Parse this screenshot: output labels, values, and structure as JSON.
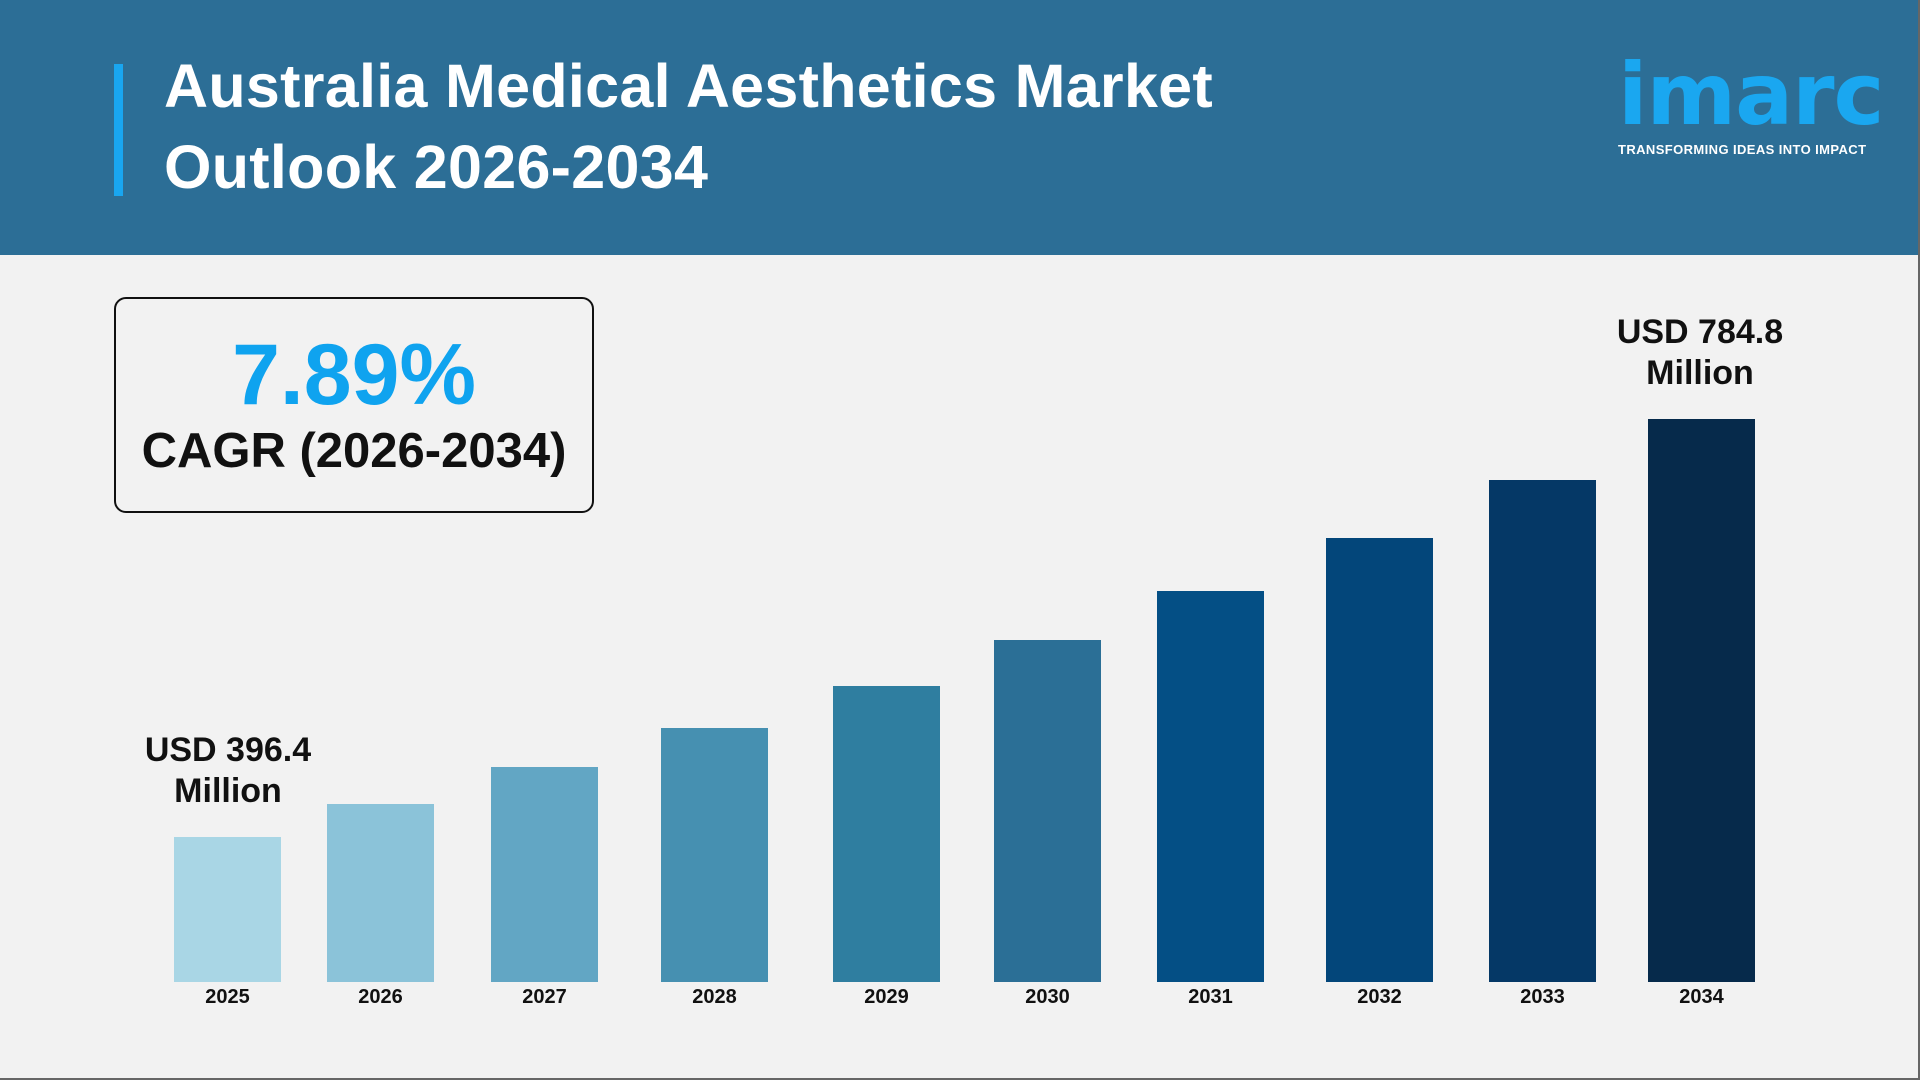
{
  "header": {
    "title_line1": "Australia Medical Aesthetics Market",
    "title_line2": "Outlook 2026-2034",
    "logo_text": "imarc",
    "logo_tagline": "TRANSFORMING IDEAS INTO IMPACT"
  },
  "cagr": {
    "value": "7.89%",
    "label": "CAGR (2026-2034)"
  },
  "colors": {
    "header_bg": "#2c6e96",
    "accent": "#19a6f0",
    "cagr_value": "#0fa3ef"
  },
  "chart_data": {
    "type": "bar",
    "categories": [
      "2025",
      "2026",
      "2027",
      "2028",
      "2029",
      "2030",
      "2031",
      "2032",
      "2033",
      "2034"
    ],
    "values": [
      396.4,
      427.7,
      461.4,
      497.8,
      537.1,
      579.5,
      625.2,
      674.5,
      727.7,
      784.8
    ],
    "unit": "USD Million",
    "bar_colors": [
      "#a9d6e5",
      "#8bc3d9",
      "#62a6c4",
      "#4690b1",
      "#2f7ea0",
      "#2b6f96",
      "#044f85",
      "#03467a",
      "#053866",
      "#062a4b"
    ],
    "annotations": {
      "first_line1": "USD 396.4",
      "first_line2": "Million",
      "last_line1": "USD 784.8",
      "last_line2": "Million"
    },
    "grid": false,
    "legend": "none"
  }
}
